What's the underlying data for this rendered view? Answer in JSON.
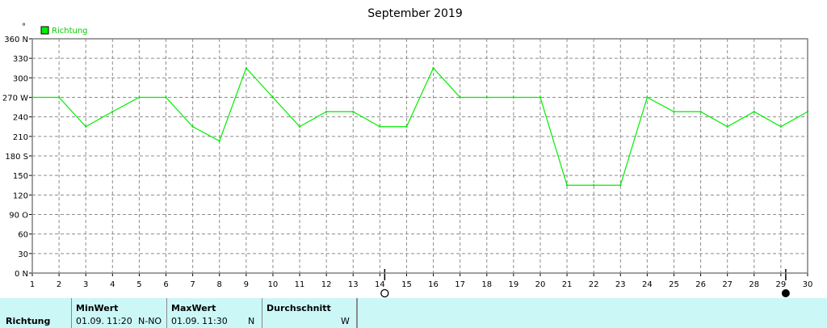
{
  "colors": {
    "series": "#00ee00",
    "grid": "#8c8c8c",
    "axis": "#000000",
    "panel": "#ccf7f7"
  },
  "chart_data": {
    "type": "line",
    "title": "September 2019",
    "unit_symbol": "°",
    "legend": "Richtung",
    "legend_position": "top-left",
    "x": [
      1,
      2,
      3,
      4,
      5,
      6,
      7,
      8,
      9,
      10,
      11,
      12,
      13,
      14,
      15,
      16,
      17,
      18,
      19,
      20,
      21,
      22,
      23,
      24,
      25,
      26,
      27,
      28,
      29,
      30
    ],
    "xlim": [
      1,
      30
    ],
    "ylim": [
      0,
      360
    ],
    "grid": true,
    "y_ticks": [
      {
        "value": 0,
        "label": "0  N"
      },
      {
        "value": 30,
        "label": "30"
      },
      {
        "value": 60,
        "label": "60"
      },
      {
        "value": 90,
        "label": "90  O"
      },
      {
        "value": 120,
        "label": "120"
      },
      {
        "value": 150,
        "label": "150"
      },
      {
        "value": 180,
        "label": "180 S"
      },
      {
        "value": 210,
        "label": "210"
      },
      {
        "value": 240,
        "label": "240"
      },
      {
        "value": 270,
        "label": "270 W"
      },
      {
        "value": 300,
        "label": "300"
      },
      {
        "value": 330,
        "label": "330"
      },
      {
        "value": 360,
        "label": "360 N"
      }
    ],
    "series": [
      {
        "name": "Richtung",
        "values": [
          270,
          270,
          225,
          248,
          270,
          270,
          225,
          203,
          315,
          270,
          225,
          248,
          248,
          225,
          225,
          315,
          270,
          270,
          270,
          270,
          135,
          135,
          135,
          270,
          248,
          248,
          225,
          248,
          225,
          248
        ]
      }
    ],
    "moon_phases": [
      {
        "day": 14,
        "symbol": "full-moon"
      },
      {
        "day": 29,
        "symbol": "new-moon"
      }
    ]
  },
  "stats": {
    "row_label": "Richtung",
    "min": {
      "title": "MinWert",
      "date": "01.09.",
      "time": "11:20",
      "value": "N-NO"
    },
    "max": {
      "title": "MaxWert",
      "date": "01.09.",
      "time": "11:30",
      "value": "N"
    },
    "avg": {
      "title": "Durchschnitt",
      "value": "W"
    }
  }
}
